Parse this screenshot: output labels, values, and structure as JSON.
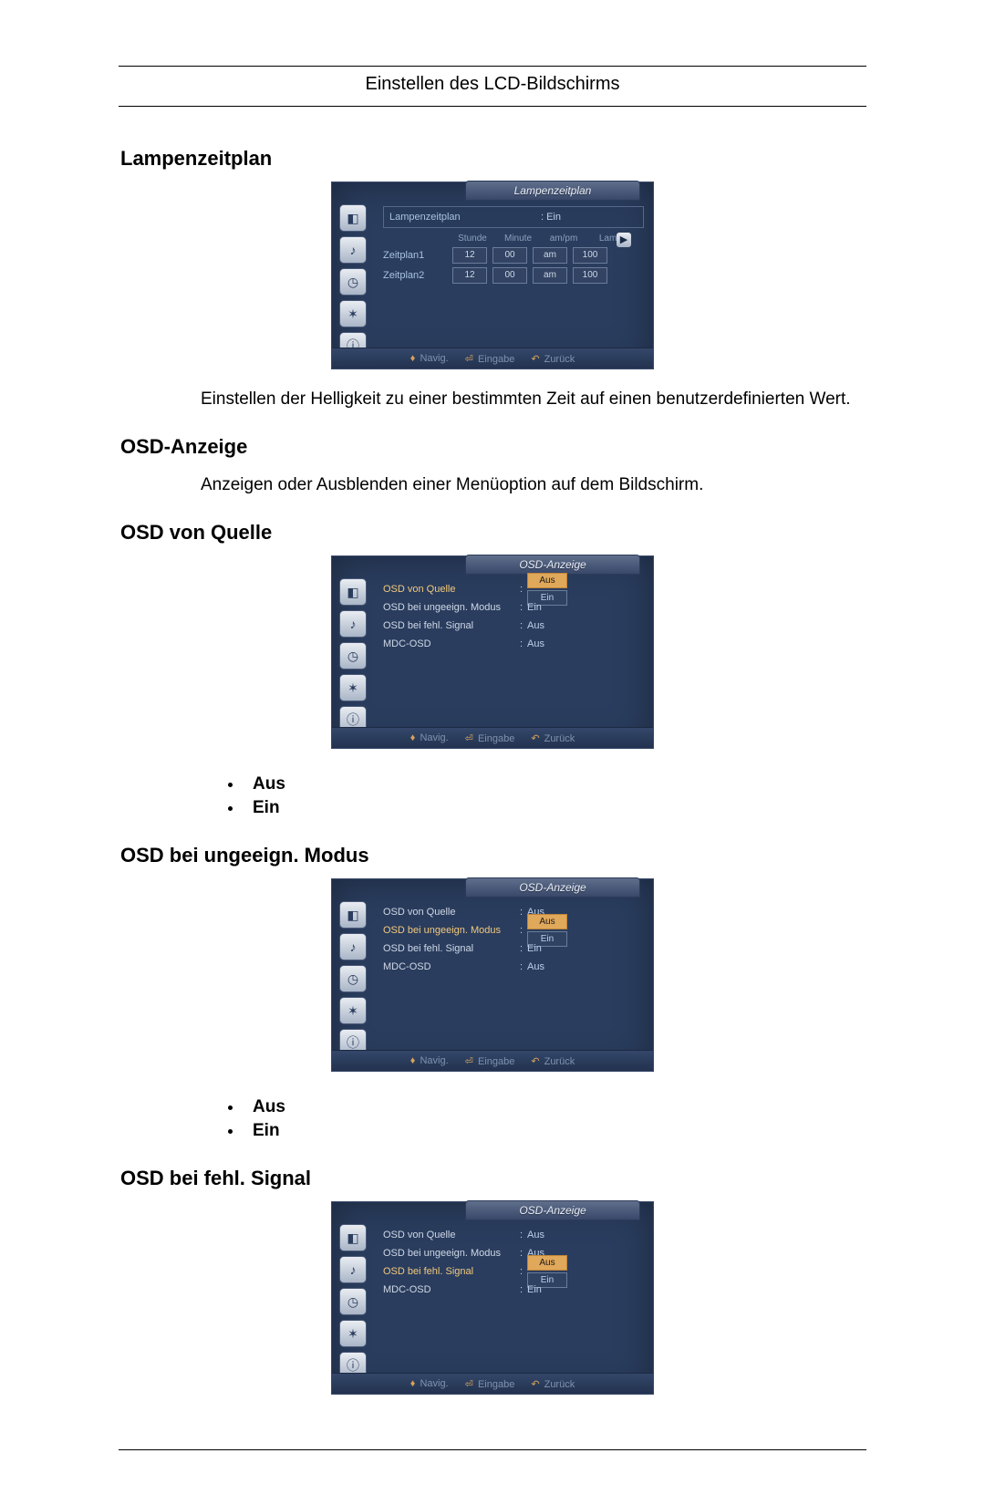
{
  "header": {
    "title": "Einstellen des LCD-Bildschirms"
  },
  "colors": {
    "panel_bg": "#2a3d5e",
    "panel_border": "#3a4a6a",
    "tab_grad_top": "#5f6f8b",
    "tab_grad_bottom": "#39486a",
    "text_light": "#cfd8e6",
    "text_link": "#a8c2e0",
    "accent": "#e0a85a",
    "footer_text": "#7f92af"
  },
  "sections": {
    "lampenzeitplan": {
      "heading": "Lampenzeitplan",
      "description": "Einstellen der Helligkeit zu einer bestimmten Zeit auf einen benutzerdefinierten Wert.",
      "panel": {
        "title": "Lampenzeitplan",
        "top_row": {
          "label": "Lampenzeitplan",
          "value": ": Ein"
        },
        "columns": {
          "c1": "Stunde",
          "c2": "Minute",
          "c3": "am/pm",
          "c4": "Lam."
        },
        "rows": [
          {
            "label": "Zeitplan1",
            "hour": "12",
            "minute": "00",
            "ampm": "am",
            "lamp": "100"
          },
          {
            "label": "Zeitplan2",
            "hour": "12",
            "minute": "00",
            "ampm": "am",
            "lamp": "100"
          }
        ]
      }
    },
    "osd_anzeige": {
      "heading": "OSD-Anzeige",
      "description": "Anzeigen oder Ausblenden einer Menüoption auf dem Bildschirm."
    },
    "osd_von_quelle": {
      "heading": "OSD von Quelle",
      "bullets": [
        "Aus",
        "Ein"
      ],
      "panel": {
        "title": "OSD-Anzeige",
        "rows": [
          {
            "label": "OSD von Quelle",
            "value": "Aus",
            "highlight": true,
            "value_highlighted": true,
            "below_value": "Ein"
          },
          {
            "label": "OSD bei ungeeign. Modus",
            "value": "Ein"
          },
          {
            "label": "OSD bei fehl. Signal",
            "value": "Aus"
          },
          {
            "label": "MDC-OSD",
            "value": "Aus"
          }
        ]
      }
    },
    "osd_ungeeign": {
      "heading": "OSD bei ungeeign. Modus",
      "bullets": [
        "Aus",
        "Ein"
      ],
      "panel": {
        "title": "OSD-Anzeige",
        "rows": [
          {
            "label": "OSD von Quelle",
            "value": "Aus"
          },
          {
            "label": "OSD bei ungeeign. Modus",
            "value": "Aus",
            "highlight": true,
            "value_highlighted": true,
            "below_value": "Ein"
          },
          {
            "label": "OSD bei fehl. Signal",
            "value": "Ein"
          },
          {
            "label": "MDC-OSD",
            "value": "Aus"
          }
        ]
      }
    },
    "osd_fehl": {
      "heading": "OSD bei fehl. Signal",
      "panel": {
        "title": "OSD-Anzeige",
        "rows": [
          {
            "label": "OSD von Quelle",
            "value": "Aus"
          },
          {
            "label": "OSD bei ungeeign. Modus",
            "value": "Aus"
          },
          {
            "label": "OSD bei fehl. Signal",
            "value": "Aus",
            "highlight": true,
            "value_highlighted": true,
            "below_value": "Ein"
          },
          {
            "label": "MDC-OSD",
            "value": "Ein"
          }
        ]
      }
    }
  },
  "panel_common": {
    "sidebar_icons": [
      "picture-icon",
      "sound-icon",
      "timer-icon",
      "settings-icon",
      "info-icon"
    ],
    "sidebar_glyphs": [
      "◧",
      "♪",
      "◷",
      "✶",
      "ⓘ"
    ],
    "footer": {
      "navig": "Navig.",
      "eingabe": "Eingabe",
      "zurueck": "Zurück",
      "navig_glyph": "♦",
      "eingabe_glyph": "⏎",
      "zurueck_glyph": "↶"
    }
  }
}
